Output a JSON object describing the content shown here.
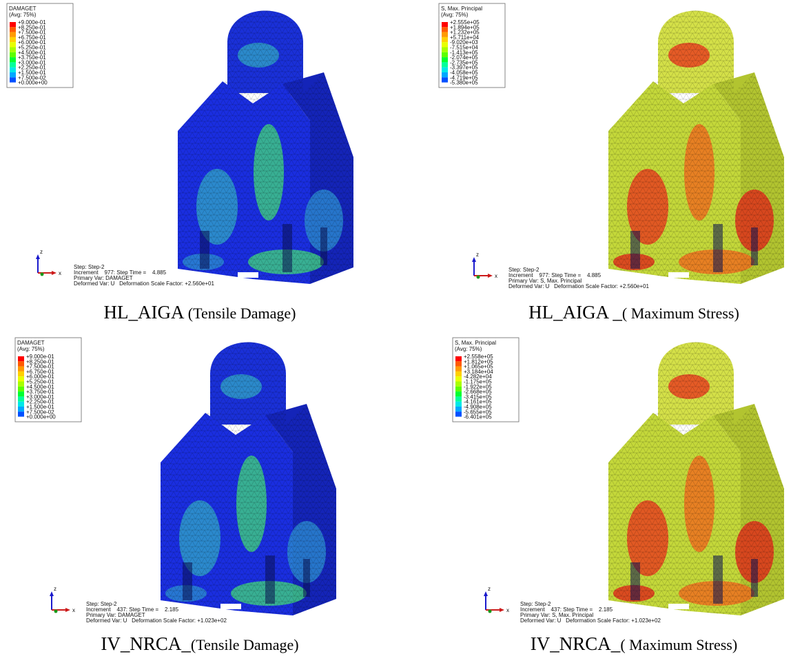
{
  "panels": [
    {
      "legend": {
        "title": "DAMAGET",
        "subtitle": "(Avg: 75%)",
        "labels": [
          "+9.000e-01",
          "+8.250e-01",
          "+7.500e-01",
          "+6.750e-01",
          "+6.000e-01",
          "+5.250e-01",
          "+4.500e-01",
          "+3.750e-01",
          "+3.000e-01",
          "+2.250e-01",
          "+1.500e-01",
          "+7.500e-02",
          "+0.000e+00"
        ]
      },
      "axes": [
        "z",
        "x"
      ],
      "info": [
        "Step: Step-2",
        "Increment    977: Step Time =    4.885",
        "Primary Var: DAMAGET",
        "Deformed Var: U   Deformation Scale Factor: +2.560e+01"
      ],
      "caption": {
        "name": "HL_AIGA ",
        "detail": "(Tensile Damage)"
      }
    },
    {
      "legend": {
        "title": "S, Max. Principal",
        "subtitle": "(Avg: 75%)",
        "labels": [
          "+2.555e+05",
          "+1.894e+05",
          "+1.232e+05",
          "+5.711e+04",
          "-9.020e+03",
          "-7.515e+04",
          "-1.413e+05",
          "-2.074e+05",
          "-2.735e+05",
          "-3.397e+05",
          "-4.058e+05",
          "-4.719e+05",
          "-5.380e+05"
        ]
      },
      "axes": [
        "z",
        "x"
      ],
      "info": [
        "Step: Step-2",
        "Increment    977: Step Time =    4.885",
        "Primary Var: S, Max. Principal",
        "Deformed Var: U   Deformation Scale Factor: +2.560e+01"
      ],
      "caption": {
        "name": "HL_AIGA _",
        "detail": "( Maximum Stress)"
      }
    },
    {
      "legend": {
        "title": "DAMAGET",
        "subtitle": "(Avg: 75%)",
        "labels": [
          "+9.000e-01",
          "+8.250e-01",
          "+7.500e-01",
          "+6.750e-01",
          "+6.000e-01",
          "+5.250e-01",
          "+4.500e-01",
          "+3.750e-01",
          "+3.000e-01",
          "+2.250e-01",
          "+1.500e-01",
          "+7.500e-02",
          "+0.000e+00"
        ]
      },
      "axes": [
        "z",
        "x"
      ],
      "info": [
        "Step: Step-2",
        "Increment    437: Step Time =    2.185",
        "Primary Var: DAMAGET",
        "Deformed Var: U   Deformation Scale Factor: +1.023e+02"
      ],
      "caption": {
        "name": "IV_NRCA_",
        "detail": "(Tensile Damage)"
      }
    },
    {
      "legend": {
        "title": "S, Max. Principal",
        "subtitle": "(Avg: 75%)",
        "labels": [
          "+2.558e+05",
          "+1.812e+05",
          "+1.065e+05",
          "+3.184e+04",
          "-4.282e+04",
          "-1.175e+05",
          "-1.922e+05",
          "-2.668e+05",
          "-3.415e+05",
          "-4.161e+05",
          "-4.908e+05",
          "-5.655e+05",
          "-6.401e+05"
        ]
      },
      "axes": [
        "z",
        "x"
      ],
      "info": [
        "Step: Step-2",
        "Increment    437: Step Time =    2.185",
        "Primary Var: S, Max. Principal",
        "Deformed Var: U   Deformation Scale Factor: +1.023e+02"
      ],
      "caption": {
        "name": "IV_NRCA_",
        "detail": "( Maximum Stress)"
      }
    }
  ]
}
